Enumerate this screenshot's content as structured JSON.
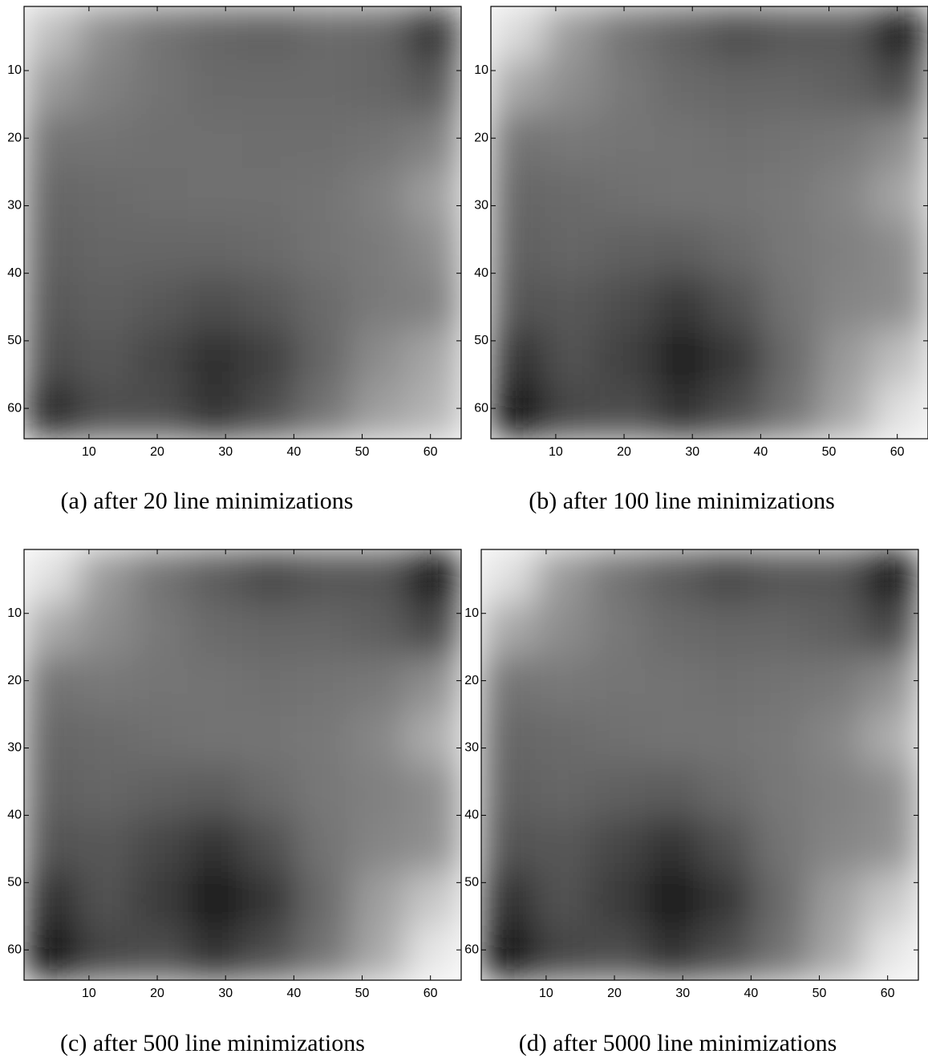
{
  "chart_data": [
    {
      "type": "heatmap",
      "caption": "(a) after 20 line minimizations",
      "colormap": "gray",
      "y_inverted": true,
      "xlim": [
        0.5,
        64.5
      ],
      "ylim": [
        0.5,
        64.5
      ],
      "xticks": [
        10,
        20,
        30,
        40,
        50,
        60
      ],
      "yticks": [
        10,
        20,
        30,
        40,
        50,
        60
      ],
      "z": [
        [
          0.75,
          0.55,
          0.45,
          0.4,
          0.38,
          0.42,
          0.4,
          0.2
        ],
        [
          0.6,
          0.5,
          0.45,
          0.42,
          0.42,
          0.42,
          0.4,
          0.35
        ],
        [
          0.45,
          0.45,
          0.44,
          0.44,
          0.43,
          0.43,
          0.45,
          0.5
        ],
        [
          0.4,
          0.42,
          0.43,
          0.44,
          0.44,
          0.45,
          0.5,
          0.62
        ],
        [
          0.38,
          0.4,
          0.4,
          0.4,
          0.42,
          0.45,
          0.48,
          0.55
        ],
        [
          0.35,
          0.38,
          0.35,
          0.3,
          0.35,
          0.42,
          0.48,
          0.5
        ],
        [
          0.3,
          0.35,
          0.28,
          0.18,
          0.25,
          0.4,
          0.55,
          0.65
        ],
        [
          0.15,
          0.3,
          0.3,
          0.2,
          0.3,
          0.45,
          0.62,
          0.7
        ]
      ]
    },
    {
      "type": "heatmap",
      "caption": "(b) after 100 line minimizations",
      "colormap": "gray",
      "y_inverted": true,
      "xlim": [
        0.5,
        64.5
      ],
      "ylim": [
        0.5,
        64.5
      ],
      "xticks": [
        10,
        20,
        30,
        40,
        50,
        60
      ],
      "yticks": [
        10,
        20,
        30,
        40,
        50,
        60
      ],
      "z": [
        [
          0.85,
          0.6,
          0.45,
          0.38,
          0.3,
          0.35,
          0.35,
          0.08
        ],
        [
          0.65,
          0.55,
          0.47,
          0.42,
          0.4,
          0.4,
          0.38,
          0.3
        ],
        [
          0.45,
          0.47,
          0.46,
          0.45,
          0.44,
          0.45,
          0.47,
          0.55
        ],
        [
          0.4,
          0.42,
          0.44,
          0.45,
          0.46,
          0.47,
          0.52,
          0.65
        ],
        [
          0.38,
          0.4,
          0.38,
          0.37,
          0.42,
          0.47,
          0.5,
          0.55
        ],
        [
          0.33,
          0.35,
          0.3,
          0.22,
          0.32,
          0.45,
          0.52,
          0.55
        ],
        [
          0.2,
          0.32,
          0.25,
          0.1,
          0.22,
          0.42,
          0.6,
          0.75
        ],
        [
          0.05,
          0.28,
          0.3,
          0.2,
          0.3,
          0.45,
          0.65,
          0.88
        ]
      ]
    },
    {
      "type": "heatmap",
      "caption": "(c) after 500 line minimizations",
      "colormap": "gray",
      "y_inverted": true,
      "xlim": [
        0.5,
        64.5
      ],
      "ylim": [
        0.5,
        64.5
      ],
      "xticks": [
        10,
        20,
        30,
        40,
        50,
        60
      ],
      "yticks": [
        10,
        20,
        30,
        40,
        50,
        60
      ],
      "z": [
        [
          0.88,
          0.6,
          0.45,
          0.36,
          0.28,
          0.33,
          0.33,
          0.05
        ],
        [
          0.66,
          0.55,
          0.47,
          0.42,
          0.4,
          0.4,
          0.37,
          0.28
        ],
        [
          0.45,
          0.47,
          0.46,
          0.45,
          0.44,
          0.45,
          0.47,
          0.56
        ],
        [
          0.4,
          0.42,
          0.44,
          0.45,
          0.46,
          0.47,
          0.53,
          0.68
        ],
        [
          0.38,
          0.4,
          0.38,
          0.36,
          0.42,
          0.47,
          0.5,
          0.55
        ],
        [
          0.32,
          0.35,
          0.28,
          0.2,
          0.31,
          0.45,
          0.52,
          0.56
        ],
        [
          0.18,
          0.32,
          0.23,
          0.08,
          0.21,
          0.42,
          0.62,
          0.78
        ],
        [
          0.03,
          0.27,
          0.3,
          0.2,
          0.3,
          0.45,
          0.66,
          0.9
        ]
      ]
    },
    {
      "type": "heatmap",
      "caption": "(d) after 5000 line minimizations",
      "colormap": "gray",
      "y_inverted": true,
      "xlim": [
        0.5,
        64.5
      ],
      "ylim": [
        0.5,
        64.5
      ],
      "xticks": [
        10,
        20,
        30,
        40,
        50,
        60
      ],
      "yticks": [
        10,
        20,
        30,
        40,
        50,
        60
      ],
      "z": [
        [
          0.88,
          0.6,
          0.45,
          0.36,
          0.28,
          0.33,
          0.33,
          0.05
        ],
        [
          0.66,
          0.55,
          0.47,
          0.42,
          0.4,
          0.4,
          0.37,
          0.28
        ],
        [
          0.45,
          0.47,
          0.46,
          0.45,
          0.44,
          0.45,
          0.47,
          0.56
        ],
        [
          0.4,
          0.42,
          0.44,
          0.45,
          0.46,
          0.47,
          0.53,
          0.68
        ],
        [
          0.38,
          0.4,
          0.38,
          0.36,
          0.42,
          0.47,
          0.5,
          0.55
        ],
        [
          0.32,
          0.35,
          0.28,
          0.2,
          0.31,
          0.45,
          0.52,
          0.56
        ],
        [
          0.18,
          0.32,
          0.23,
          0.08,
          0.21,
          0.42,
          0.62,
          0.78
        ],
        [
          0.03,
          0.27,
          0.3,
          0.2,
          0.3,
          0.45,
          0.66,
          0.9
        ]
      ]
    }
  ]
}
